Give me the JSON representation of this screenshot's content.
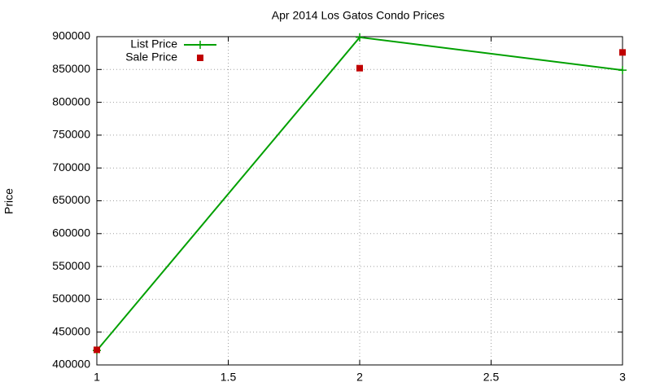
{
  "chart_data": {
    "type": "line",
    "title": "Apr 2014 Los Gatos Condo Prices",
    "y_label": "Price",
    "x": [
      1,
      2,
      3
    ],
    "series": [
      {
        "name": "List Price",
        "color": "#00a000",
        "style": "linespoints",
        "values": [
          422000,
          899000,
          849000
        ]
      },
      {
        "name": "Sale Price",
        "color": "#c00000",
        "style": "points",
        "values": [
          423000,
          852000,
          876000
        ]
      }
    ],
    "xlim": [
      1,
      3
    ],
    "xticks": [
      1,
      1.5,
      2,
      2.5,
      3
    ],
    "ylim": [
      400000,
      900000
    ],
    "yticks": [
      400000,
      450000,
      500000,
      550000,
      600000,
      650000,
      700000,
      750000,
      800000,
      850000,
      900000
    ],
    "grid": true,
    "legend": "top-left"
  }
}
